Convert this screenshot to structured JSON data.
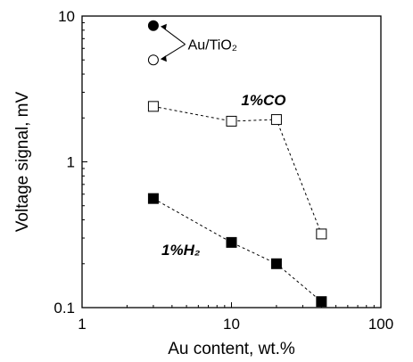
{
  "chart_data": {
    "type": "scatter",
    "xscale": "log",
    "yscale": "log",
    "xlim": [
      1,
      100
    ],
    "ylim": [
      0.1,
      10
    ],
    "xlabel": "Au content, wt.%",
    "ylabel": "Voltage signal, mV",
    "xticks": [
      "1",
      "10",
      "100"
    ],
    "yticks": [
      "0.1",
      "1",
      "10"
    ],
    "grid": false,
    "series": [
      {
        "name": "1%CO",
        "marker": "open-square",
        "connected": true,
        "x": [
          3,
          10,
          20,
          40
        ],
        "y": [
          2.4,
          1.9,
          1.95,
          0.32
        ]
      },
      {
        "name": "1%H₂",
        "marker": "filled-square",
        "connected": true,
        "x": [
          3,
          10,
          20,
          40
        ],
        "y": [
          0.56,
          0.28,
          0.2,
          0.11
        ]
      },
      {
        "name": "",
        "marker": "filled-circle",
        "connected": false,
        "x": [
          3
        ],
        "y": [
          8.6
        ]
      },
      {
        "name": "",
        "marker": "open-circle",
        "connected": false,
        "x": [
          3
        ],
        "y": [
          5.0
        ]
      }
    ],
    "annotations": [
      {
        "text": "Au/TiO₂",
        "points_to": [
          "filled-circle",
          "open-circle"
        ]
      }
    ]
  }
}
